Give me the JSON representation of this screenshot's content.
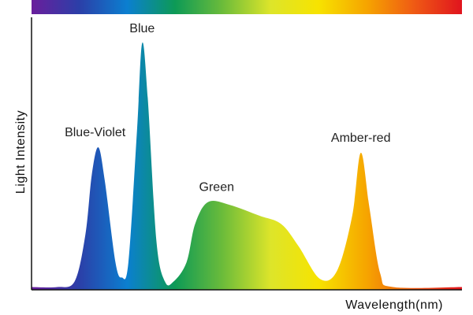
{
  "chart_data": {
    "type": "area",
    "xlabel": "Wavelength(nm)",
    "ylabel": "Light  Intensity",
    "spectrum_bar": true,
    "x_range": [
      0,
      100
    ],
    "y_range": [
      0,
      100
    ],
    "curve": [
      [
        0,
        1
      ],
      [
        6,
        1
      ],
      [
        10,
        3
      ],
      [
        12.5,
        20
      ],
      [
        14,
        42
      ],
      [
        15.5,
        52
      ],
      [
        17,
        40
      ],
      [
        19.5,
        10
      ],
      [
        21,
        4.5
      ],
      [
        22.5,
        10
      ],
      [
        24.5,
        58
      ],
      [
        25.7,
        90
      ],
      [
        27,
        70
      ],
      [
        29,
        18
      ],
      [
        31,
        3
      ],
      [
        33,
        3
      ],
      [
        36,
        10
      ],
      [
        38,
        24
      ],
      [
        41,
        32
      ],
      [
        46,
        31
      ],
      [
        53,
        27
      ],
      [
        58,
        24
      ],
      [
        62,
        16
      ],
      [
        67,
        4
      ],
      [
        71,
        7
      ],
      [
        74.5,
        27
      ],
      [
        76.5,
        50
      ],
      [
        78.5,
        30
      ],
      [
        81,
        6
      ],
      [
        84,
        1
      ],
      [
        100,
        1
      ]
    ],
    "peaks": [
      {
        "label": "Blue-Violet",
        "x": 15.5,
        "y": 52
      },
      {
        "label": "Blue",
        "x": 25.7,
        "y": 90
      },
      {
        "label": "Green",
        "x": 43,
        "y": 32
      },
      {
        "label": "Amber-red",
        "x": 76.5,
        "y": 50
      }
    ],
    "colors": {
      "spectrum": [
        "#6a1e9c",
        "#2b3fa8",
        "#0b7fd0",
        "#0d9a56",
        "#6cbc3a",
        "#dde52a",
        "#f7e300",
        "#f6a500",
        "#ef5a14",
        "#e0141e"
      ],
      "axis": "#111111"
    }
  }
}
